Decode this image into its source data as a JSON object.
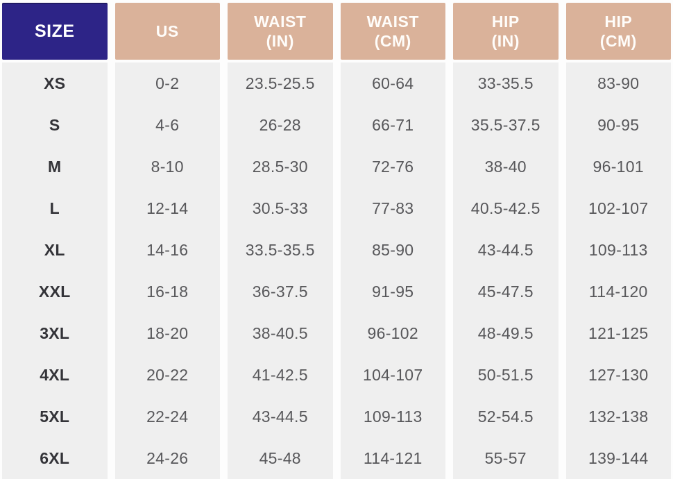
{
  "table": {
    "headers": [
      {
        "label": "SIZE",
        "line2": ""
      },
      {
        "label": "US",
        "line2": ""
      },
      {
        "label": "WAIST",
        "line2": "(IN)"
      },
      {
        "label": "WAIST",
        "line2": "(CM)"
      },
      {
        "label": "HIP",
        "line2": "(IN)"
      },
      {
        "label": "HIP",
        "line2": "(CM)"
      }
    ]
  },
  "chart_data": {
    "type": "table",
    "title": "",
    "columns": [
      "SIZE",
      "US",
      "WAIST (IN)",
      "WAIST (CM)",
      "HIP (IN)",
      "HIP (CM)"
    ],
    "rows": [
      [
        "XS",
        "0-2",
        "23.5-25.5",
        "60-64",
        "33-35.5",
        "83-90"
      ],
      [
        "S",
        "4-6",
        "26-28",
        "66-71",
        "35.5-37.5",
        "90-95"
      ],
      [
        "M",
        "8-10",
        "28.5-30",
        "72-76",
        "38-40",
        "96-101"
      ],
      [
        "L",
        "12-14",
        "30.5-33",
        "77-83",
        "40.5-42.5",
        "102-107"
      ],
      [
        "XL",
        "14-16",
        "33.5-35.5",
        "85-90",
        "43-44.5",
        "109-113"
      ],
      [
        "XXL",
        "16-18",
        "36-37.5",
        "91-95",
        "45-47.5",
        "114-120"
      ],
      [
        "3XL",
        "18-20",
        "38-40.5",
        "96-102",
        "48-49.5",
        "121-125"
      ],
      [
        "4XL",
        "20-22",
        "41-42.5",
        "104-107",
        "50-51.5",
        "127-130"
      ],
      [
        "5XL",
        "22-24",
        "43-44.5",
        "109-113",
        "52-54.5",
        "132-138"
      ],
      [
        "6XL",
        "24-26",
        "45-48",
        "114-121",
        "55-57",
        "139-144"
      ]
    ]
  },
  "colors": {
    "size_header_bg": "#2d2487",
    "measure_header_bg": "#dab29a",
    "header_text": "#ffffff",
    "cell_bg": "#efefef",
    "value_text": "#57575a",
    "size_label_text": "#333338"
  }
}
